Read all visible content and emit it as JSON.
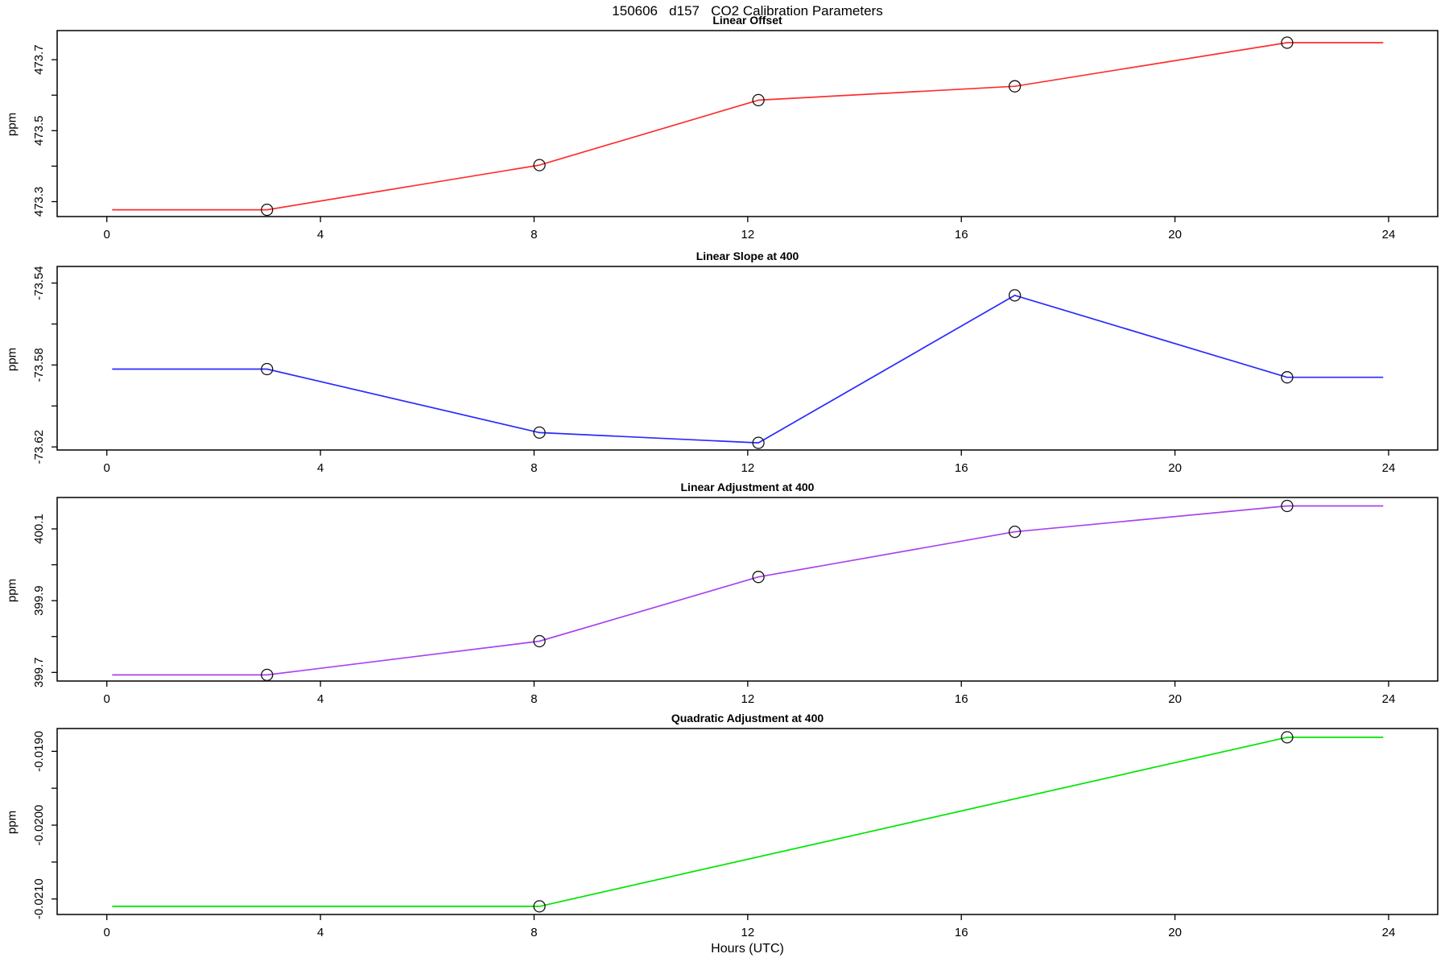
{
  "title": "150606   d157   CO2 Calibration Parameters",
  "xlabel": "Hours (UTC)",
  "chart_data": [
    {
      "type": "line",
      "title": "Linear Offset",
      "ylabel": "ppm",
      "color": "#ff2d2d",
      "xlim": [
        -0.93,
        24.92
      ],
      "ylim": [
        473.258,
        473.782
      ],
      "xticks": [
        0,
        4,
        8,
        12,
        16,
        20,
        24
      ],
      "yticks": [
        {
          "v": 473.3,
          "label": "473.3"
        },
        {
          "v": 473.4,
          "label": ""
        },
        {
          "v": 473.5,
          "label": "473.5"
        },
        {
          "v": 473.6,
          "label": ""
        },
        {
          "v": 473.7,
          "label": "473.7"
        }
      ],
      "line": [
        [
          0.1,
          473.277
        ],
        [
          3.0,
          473.277
        ],
        [
          8.1,
          473.403
        ],
        [
          12.2,
          473.586
        ],
        [
          17.0,
          473.625
        ],
        [
          22.1,
          473.748
        ],
        [
          23.9,
          473.748
        ]
      ],
      "points": [
        [
          3.0,
          473.277
        ],
        [
          8.1,
          473.403
        ],
        [
          12.2,
          473.586
        ],
        [
          17.0,
          473.625
        ],
        [
          22.1,
          473.748
        ]
      ]
    },
    {
      "type": "line",
      "title": "Linear Slope at 400",
      "ylabel": "ppm",
      "color": "#2a2aff",
      "xlim": [
        -0.93,
        24.92
      ],
      "ylim": [
        -73.6215,
        -73.5319
      ],
      "xticks": [
        0,
        4,
        8,
        12,
        16,
        20,
        24
      ],
      "yticks": [
        {
          "v": -73.62,
          "label": "-73.62"
        },
        {
          "v": -73.6,
          "label": ""
        },
        {
          "v": -73.58,
          "label": "-73.58"
        },
        {
          "v": -73.56,
          "label": ""
        },
        {
          "v": -73.54,
          "label": "-73.54"
        }
      ],
      "line": [
        [
          0.1,
          -73.582
        ],
        [
          3.0,
          -73.582
        ],
        [
          8.1,
          -73.613
        ],
        [
          12.2,
          -73.618
        ],
        [
          17.0,
          -73.546
        ],
        [
          22.1,
          -73.586
        ],
        [
          23.9,
          -73.586
        ]
      ],
      "points": [
        [
          3.0,
          -73.582
        ],
        [
          8.1,
          -73.613
        ],
        [
          12.2,
          -73.618
        ],
        [
          17.0,
          -73.546
        ],
        [
          22.1,
          -73.586
        ]
      ]
    },
    {
      "type": "line",
      "title": "Linear Adjustment at 400",
      "ylabel": "ppm",
      "color": "#a942f0",
      "xlim": [
        -0.93,
        24.92
      ],
      "ylim": [
        399.676,
        400.1875
      ],
      "xticks": [
        0,
        4,
        8,
        12,
        16,
        20,
        24
      ],
      "yticks": [
        {
          "v": 399.7,
          "label": "399.7"
        },
        {
          "v": 399.8,
          "label": ""
        },
        {
          "v": 399.9,
          "label": "399.9"
        },
        {
          "v": 400.0,
          "label": ""
        },
        {
          "v": 400.1,
          "label": "400.1"
        }
      ],
      "line": [
        [
          0.1,
          399.693
        ],
        [
          3.0,
          399.693
        ],
        [
          8.1,
          399.787
        ],
        [
          12.2,
          399.966
        ],
        [
          17.0,
          400.092
        ],
        [
          22.1,
          400.164
        ],
        [
          23.9,
          400.164
        ]
      ],
      "points": [
        [
          3.0,
          399.693
        ],
        [
          8.1,
          399.787
        ],
        [
          12.2,
          399.966
        ],
        [
          17.0,
          400.092
        ],
        [
          22.1,
          400.164
        ]
      ]
    },
    {
      "type": "line",
      "title": "Quadratic Adjustment at 400",
      "ylabel": "ppm",
      "color": "#00e500",
      "xlim": [
        -0.93,
        24.92
      ],
      "ylim": [
        -0.02121,
        -0.018691
      ],
      "xticks": [
        0,
        4,
        8,
        12,
        16,
        20,
        24
      ],
      "yticks": [
        {
          "v": -0.021,
          "label": "-0.0210"
        },
        {
          "v": -0.0205,
          "label": ""
        },
        {
          "v": -0.02,
          "label": "-0.0200"
        },
        {
          "v": -0.0195,
          "label": ""
        },
        {
          "v": -0.019,
          "label": "-0.0190"
        }
      ],
      "line": [
        [
          0.1,
          -0.0211
        ],
        [
          8.1,
          -0.0211
        ],
        [
          22.1,
          -0.01881
        ],
        [
          23.9,
          -0.01881
        ]
      ],
      "points": [
        [
          8.1,
          -0.0211
        ],
        [
          22.1,
          -0.01881
        ]
      ]
    }
  ]
}
